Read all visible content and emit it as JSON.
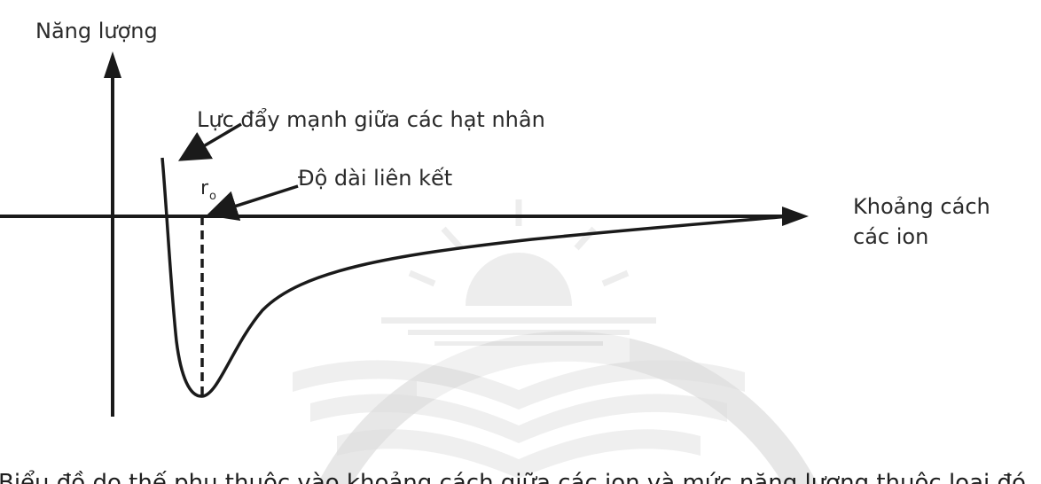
{
  "axes": {
    "y_label": "Năng lượng",
    "x_label_line1": "Khoảng cách",
    "x_label_line2": "các ion"
  },
  "annotations": {
    "repulsion": "Lực đẩy mạnh giữa các hạt nhân",
    "bond_length": "Độ dài liên kết",
    "r0_main": "r",
    "r0_sub": "o"
  },
  "caption": {
    "text": "Biểu đồ do thế phụ thuộc vào khoảng cách giữa các ion và mức năng lượng thuộc loại đó"
  },
  "colors": {
    "ink": "#1a1a1a",
    "text": "#2a2a2a",
    "watermark": "#cfcfcf"
  }
}
